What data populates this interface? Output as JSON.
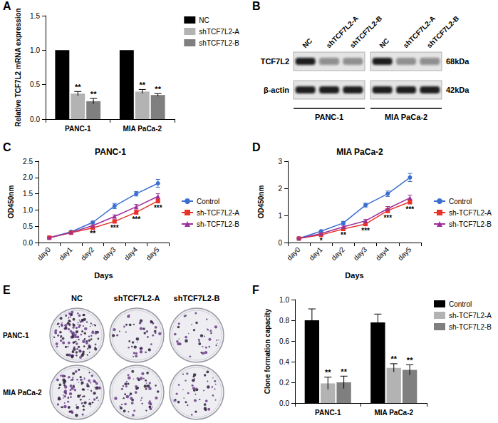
{
  "chart_data": [
    {
      "panel_label": "A",
      "type": "bar",
      "ylabel": "Relative TCF7L2 mRNA expression",
      "categories": [
        "PANC-1",
        "MIA PaCa-2"
      ],
      "series": [
        {
          "name": "NC",
          "color": "#000000",
          "values": [
            1,
            1
          ]
        },
        {
          "name": "shTCF7L2-A",
          "color": "#b3b3b3",
          "values": [
            0.37,
            0.4
          ],
          "errors": [
            0.03,
            0.03
          ],
          "significance": [
            "**",
            "**"
          ]
        },
        {
          "name": "shTCF7L2-B",
          "color": "#7f7f7f",
          "values": [
            0.26,
            0.35
          ],
          "errors": [
            0.04,
            0.02
          ],
          "significance": [
            "**",
            "**"
          ]
        }
      ],
      "ylim": [
        0,
        1.5
      ],
      "yticks": [
        {
          "value": 0,
          "label": "0.0"
        },
        0.5,
        {
          "value": 1,
          "label": "1.0"
        },
        1.5
      ],
      "grid": false,
      "legend": "upper right"
    },
    {
      "panel_label": "C",
      "type": "line",
      "title": "PANC-1",
      "xlabel": "Days",
      "ylabel": "OD450nm",
      "categories": [
        "day0",
        "day1",
        "day2",
        "day3",
        "day4",
        "day5"
      ],
      "series": [
        {
          "name": "Control",
          "color": "#3a6fd0",
          "marker": "circle",
          "values": [
            0.15,
            0.33,
            0.62,
            1.12,
            1.5,
            1.82
          ],
          "errors": [
            0.01,
            0.02,
            0.03,
            0.08,
            0.07,
            0.12
          ]
        },
        {
          "name": "sh-TCF7L2-A",
          "color": "#e8332a",
          "marker": "square",
          "values": [
            0.15,
            0.3,
            0.45,
            0.65,
            0.93,
            1.28
          ],
          "errors": [
            0.01,
            0.02,
            0.03,
            0.05,
            0.06,
            0.06
          ]
        },
        {
          "name": "sh-TCF7L2-B",
          "color": "#9b2f9b",
          "marker": "triangle",
          "values": [
            0.15,
            0.31,
            0.52,
            0.8,
            1.1,
            1.42
          ],
          "errors": [
            0.01,
            0.02,
            0.03,
            0.05,
            0.07,
            0.08
          ]
        }
      ],
      "significance": [
        null,
        null,
        "**",
        "***",
        "***",
        "***"
      ],
      "ylim": [
        0,
        2.5
      ],
      "yticks": [
        {
          "value": 0,
          "label": "0.0"
        },
        0.5,
        {
          "value": 1,
          "label": "1.0"
        },
        1.5,
        {
          "value": 2,
          "label": "2.0"
        },
        2.5
      ],
      "grid": false,
      "legend": "right"
    },
    {
      "panel_label": "D",
      "type": "line",
      "title": "MIA PaCa-2",
      "xlabel": "Days",
      "ylabel": "OD450nm",
      "categories": [
        "day0",
        "day1",
        "day2",
        "day3",
        "day4",
        "day5"
      ],
      "series": [
        {
          "name": "Control",
          "color": "#3a6fd0",
          "marker": "circle",
          "values": [
            0.15,
            0.42,
            0.72,
            1.38,
            1.8,
            2.4
          ],
          "errors": [
            0.01,
            0.03,
            0.06,
            0.07,
            0.1,
            0.15
          ]
        },
        {
          "name": "sh-TCF7L2-A",
          "color": "#e8332a",
          "marker": "square",
          "values": [
            0.15,
            0.28,
            0.5,
            0.68,
            1.18,
            1.5
          ],
          "errors": [
            0.01,
            0.02,
            0.05,
            0.05,
            0.08,
            0.08
          ]
        },
        {
          "name": "sh-TCF7L2-B",
          "color": "#9b2f9b",
          "marker": "triangle",
          "values": [
            0.15,
            0.33,
            0.58,
            0.8,
            1.25,
            1.65
          ],
          "errors": [
            0.01,
            0.02,
            0.05,
            0.05,
            0.08,
            0.1
          ]
        }
      ],
      "significance": [
        null,
        "*",
        "**",
        "***",
        "***",
        "***"
      ],
      "ylim": [
        0,
        3
      ],
      "yticks": [
        0,
        1,
        2,
        3
      ],
      "grid": false,
      "legend": "right"
    },
    {
      "panel_label": "F",
      "type": "bar",
      "ylabel": "Clone formation capacity",
      "categories": [
        "PANC-1",
        "MIA PaCa-2"
      ],
      "series": [
        {
          "name": "Control",
          "color": "#000000",
          "values": [
            0.8,
            0.78
          ],
          "errors": [
            0.11,
            0.08
          ]
        },
        {
          "name": "sh-TCF7L2-A",
          "color": "#b3b3b3",
          "values": [
            0.19,
            0.34
          ],
          "errors": [
            0.06,
            0.04
          ],
          "significance": [
            "**",
            "**"
          ]
        },
        {
          "name": "sh-TCF7L2-B",
          "color": "#7f7f7f",
          "values": [
            0.2,
            0.32
          ],
          "errors": [
            0.06,
            0.05
          ],
          "significance": [
            "**",
            "**"
          ]
        }
      ],
      "ylim": [
        0,
        1
      ],
      "yticks": [
        {
          "value": 0,
          "label": "0.0"
        },
        0.2,
        0.4,
        0.6,
        0.8,
        {
          "value": 1,
          "label": "1.0"
        }
      ],
      "grid": false,
      "legend": "upper right"
    }
  ],
  "western_blot": {
    "panel_label": "B",
    "lanes": [
      "NC",
      "shTCF7L2-A",
      "shTCF7L2-B"
    ],
    "groups": [
      "PANC-1",
      "MIA PaCa-2"
    ],
    "rows": [
      {
        "protein": "TCF7L2",
        "size": "68kDa",
        "band_intensity": [
          [
            1,
            0.45,
            0.4
          ],
          [
            1,
            0.4,
            0.45
          ]
        ]
      },
      {
        "protein": "β-actin",
        "size": "42kDa",
        "band_intensity": [
          [
            1,
            1,
            1
          ],
          [
            1,
            1,
            1
          ]
        ]
      }
    ]
  },
  "colony_formation": {
    "panel_label": "E",
    "columns": [
      "NC",
      "shTCF7L2-A",
      "shTCF7L2-B"
    ],
    "rows": [
      "PANC-1",
      "MIA PaCa-2"
    ],
    "colony_counts": [
      [
        140,
        45,
        40
      ],
      [
        110,
        60,
        45
      ]
    ]
  }
}
